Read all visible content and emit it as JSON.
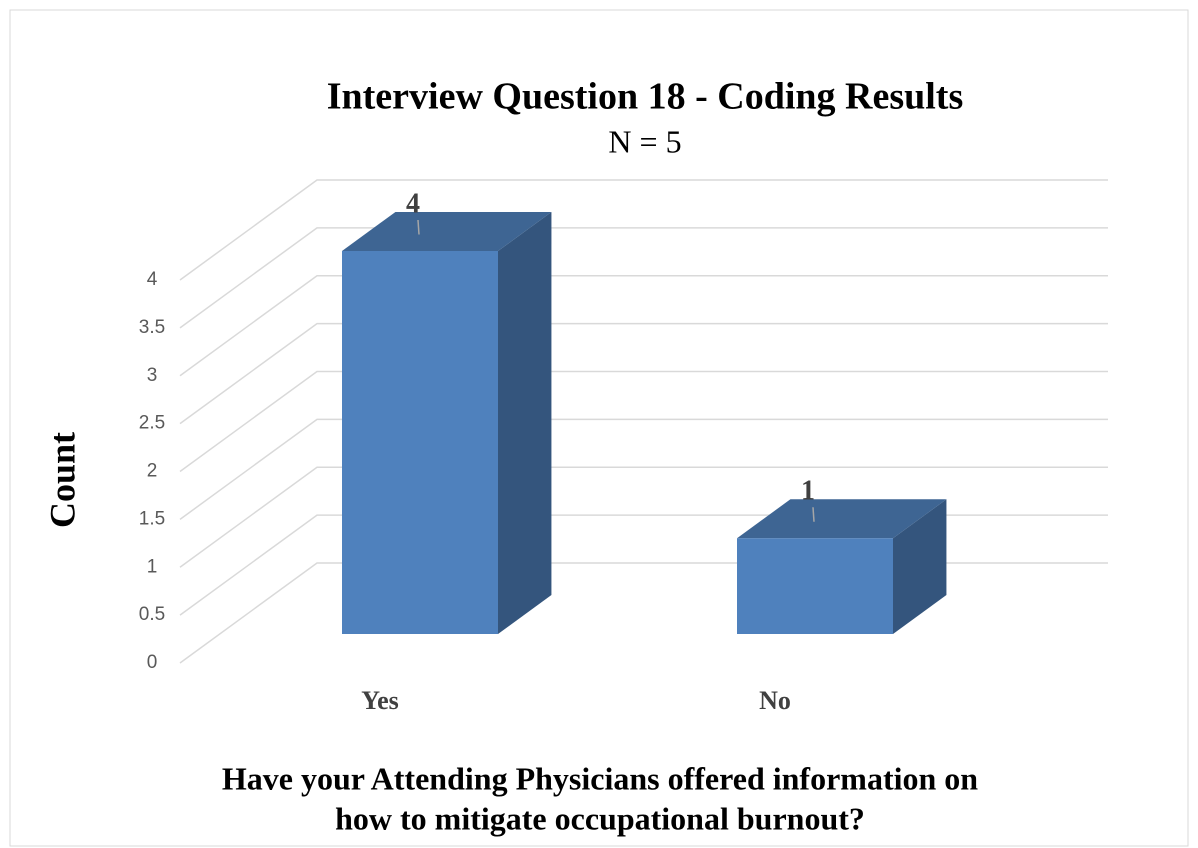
{
  "chart_data": {
    "type": "bar3d",
    "title": "Interview Question 18 - Coding Results",
    "subtitle": "N = 5",
    "categories": [
      "Yes",
      "No"
    ],
    "values": [
      4,
      1
    ],
    "color": "#4f81bd",
    "ylabel": "Count",
    "xlabel": [
      "Have your Attending Physicians offered information on",
      "how to mitigate occupational burnout?"
    ],
    "ylim": [
      0,
      4
    ],
    "yticks": [
      0,
      0.5,
      1,
      1.5,
      2,
      2.5,
      3,
      3.5,
      4
    ],
    "grid": true
  }
}
